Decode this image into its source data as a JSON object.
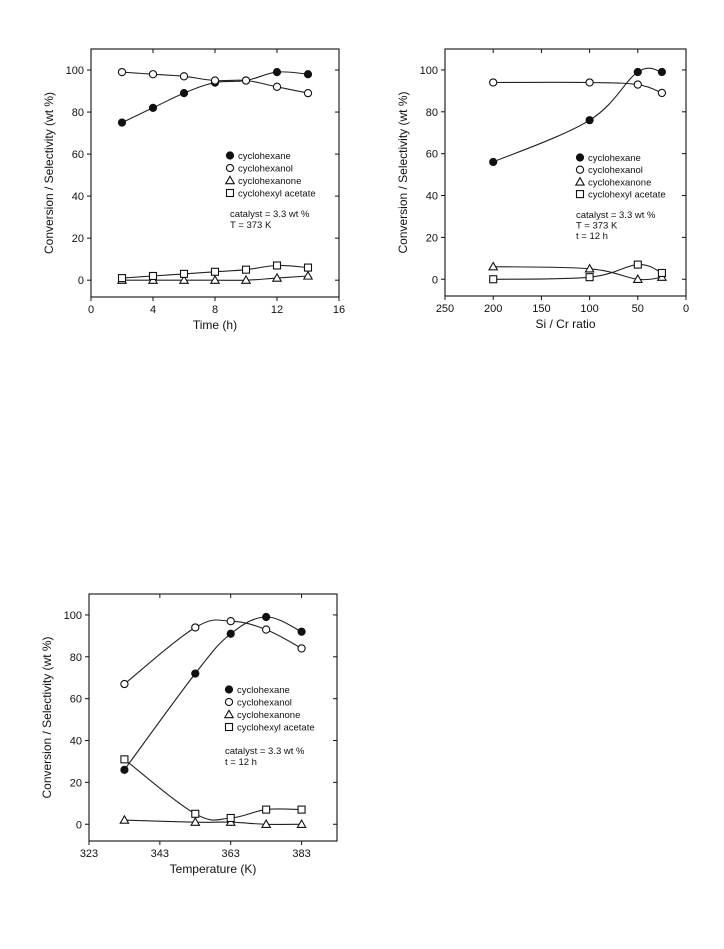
{
  "chart_data": [
    {
      "type": "line",
      "id": "panel-time",
      "xlabel": "Time (h)",
      "ylabel": "Conversion / Selectivity (wt %)",
      "xlim": [
        0,
        16
      ],
      "ylim": [
        -8,
        110
      ],
      "x_reversed": false,
      "xticks": [
        0,
        4,
        8,
        12,
        16
      ],
      "xtick_labels": [
        "0",
        "4",
        "8",
        "12",
        "16"
      ],
      "yticks": [
        0,
        20,
        40,
        60,
        80,
        100
      ],
      "ytick_labels": [
        "0",
        "20",
        "40",
        "60",
        "80",
        "100"
      ],
      "series": [
        {
          "name": "cyclohexane",
          "marker": "filled-circle",
          "x": [
            2,
            4,
            6,
            8,
            10,
            12,
            14
          ],
          "y": [
            75,
            82,
            89,
            94,
            95,
            99,
            98
          ]
        },
        {
          "name": "cyclohexanol",
          "marker": "open-circle",
          "x": [
            2,
            4,
            6,
            8,
            10,
            12,
            14
          ],
          "y": [
            99,
            98,
            97,
            95,
            95,
            92,
            89
          ]
        },
        {
          "name": "cyclohexanone",
          "marker": "open-triangle",
          "x": [
            2,
            4,
            6,
            8,
            10,
            12,
            14
          ],
          "y": [
            0,
            0,
            0,
            0,
            0,
            1,
            2
          ]
        },
        {
          "name": "cyclohexyl acetate",
          "marker": "open-square",
          "x": [
            2,
            4,
            6,
            8,
            10,
            12,
            14
          ],
          "y": [
            1,
            2,
            3,
            4,
            5,
            7,
            6
          ]
        }
      ],
      "legend_position": "center-right",
      "annotations": [
        "catalyst = 3.3 wt %",
        "T = 373 K"
      ]
    },
    {
      "type": "line",
      "id": "panel-ratio",
      "xlabel": "Si / Cr ratio",
      "ylabel": "Conversion / Selectivity (wt %)",
      "xlim": [
        250,
        0
      ],
      "ylim": [
        -8,
        110
      ],
      "x_reversed": true,
      "xticks": [
        250,
        200,
        150,
        100,
        50,
        0
      ],
      "xtick_labels": [
        "250",
        "200",
        "150",
        "100",
        "50",
        "0"
      ],
      "yticks": [
        0,
        20,
        40,
        60,
        80,
        100
      ],
      "ytick_labels": [
        "0",
        "20",
        "40",
        "60",
        "80",
        "100"
      ],
      "series": [
        {
          "name": "cyclohexane",
          "marker": "filled-circle",
          "x": [
            200,
            100,
            50,
            25
          ],
          "y": [
            56,
            76,
            99,
            99
          ]
        },
        {
          "name": "cyclohexanol",
          "marker": "open-circle",
          "x": [
            200,
            100,
            50,
            25
          ],
          "y": [
            94,
            94,
            93,
            89
          ]
        },
        {
          "name": "cyclohexanone",
          "marker": "open-triangle",
          "x": [
            200,
            100,
            50,
            25
          ],
          "y": [
            6,
            5,
            0,
            1
          ]
        },
        {
          "name": "cyclohexyl acetate",
          "marker": "open-square",
          "x": [
            200,
            100,
            50,
            25
          ],
          "y": [
            0,
            1,
            7,
            3
          ]
        }
      ],
      "legend_position": "center-right",
      "annotations": [
        "catalyst = 3.3 wt %",
        "T = 373 K",
        "t =  12 h"
      ]
    },
    {
      "type": "line",
      "id": "panel-temperature",
      "xlabel": "Temperature (K)",
      "ylabel": "Conversion / Selectivity (wt %)",
      "xlim": [
        323,
        393
      ],
      "ylim": [
        -8,
        110
      ],
      "x_reversed": false,
      "xticks": [
        323,
        343,
        363,
        383
      ],
      "xtick_labels": [
        "323",
        "343",
        "363",
        "383"
      ],
      "yticks": [
        0,
        20,
        40,
        60,
        80,
        100
      ],
      "ytick_labels": [
        "0",
        "20",
        "40",
        "60",
        "80",
        "100"
      ],
      "series": [
        {
          "name": "cyclohexane",
          "marker": "filled-circle",
          "x": [
            333,
            353,
            363,
            373,
            383
          ],
          "y": [
            26,
            72,
            91,
            99,
            92
          ]
        },
        {
          "name": "cyclohexanol",
          "marker": "open-circle",
          "x": [
            333,
            353,
            363,
            373,
            383
          ],
          "y": [
            67,
            94,
            97,
            93,
            84
          ]
        },
        {
          "name": "cyclohexanone",
          "marker": "open-triangle",
          "x": [
            333,
            353,
            363,
            373,
            383
          ],
          "y": [
            2,
            1,
            1,
            0,
            0
          ]
        },
        {
          "name": "cyclohexyl acetate",
          "marker": "open-square",
          "x": [
            333,
            353,
            363,
            373,
            383
          ],
          "y": [
            31,
            5,
            3,
            7,
            7
          ]
        }
      ],
      "legend_position": "center-right",
      "annotations": [
        "catalyst = 3.3 wt %",
        "t = 12 h"
      ]
    }
  ]
}
